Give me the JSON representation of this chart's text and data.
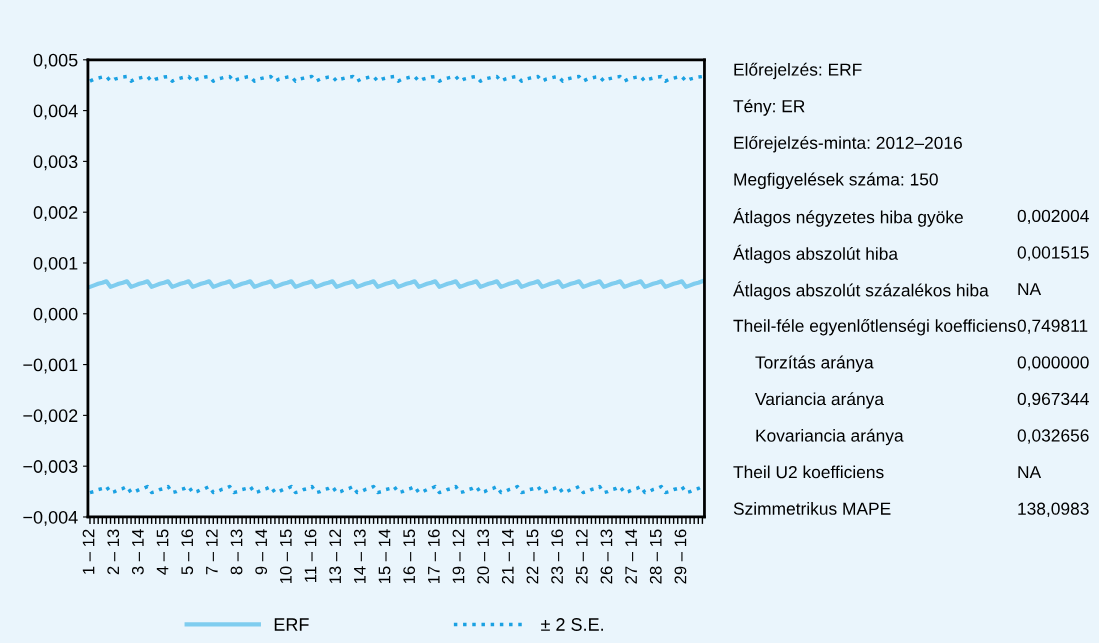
{
  "chart_data": {
    "type": "line",
    "categories": [
      "1 – 12",
      null,
      null,
      null,
      null,
      null,
      "2 – 13",
      null,
      null,
      null,
      null,
      null,
      "3 – 14",
      null,
      null,
      null,
      null,
      null,
      "4 – 15",
      null,
      null,
      null,
      null,
      null,
      "5 – 16",
      null,
      null,
      null,
      null,
      null,
      "7 – 12",
      null,
      null,
      null,
      null,
      null,
      "8 – 13",
      null,
      null,
      null,
      null,
      null,
      "9 – 14",
      null,
      null,
      null,
      null,
      null,
      "10 – 15",
      null,
      null,
      null,
      null,
      null,
      "11 – 16",
      null,
      null,
      null,
      null,
      null,
      "13 – 12",
      null,
      null,
      null,
      null,
      null,
      "14 – 13",
      null,
      null,
      null,
      null,
      null,
      "15 – 14",
      null,
      null,
      null,
      null,
      null,
      "16 – 15",
      null,
      null,
      null,
      null,
      null,
      "17 – 16",
      null,
      null,
      null,
      null,
      null,
      "19 – 12",
      null,
      null,
      null,
      null,
      null,
      "20 – 13",
      null,
      null,
      null,
      null,
      null,
      "21 – 14",
      null,
      null,
      null,
      null,
      null,
      "22 – 15",
      null,
      null,
      null,
      null,
      null,
      "23 – 16",
      null,
      null,
      null,
      null,
      null,
      "25 – 12",
      null,
      null,
      null,
      null,
      null,
      "26 – 13",
      null,
      null,
      null,
      null,
      null,
      "27 – 14",
      null,
      null,
      null,
      null,
      null,
      "28 – 15",
      null,
      null,
      null,
      null,
      null,
      "29 – 16",
      null,
      null,
      null,
      null,
      null
    ],
    "series": [
      {
        "name": "ERF",
        "color": "#7fcdef",
        "line_style": "solid",
        "values": [
          0.00053,
          0.00056,
          0.00059,
          0.00061,
          0.00064,
          0.00053,
          0.00056,
          0.00059,
          0.00061,
          0.00064,
          0.00053,
          0.00056,
          0.00059,
          0.00061,
          0.00064,
          0.00053,
          0.00056,
          0.00059,
          0.00061,
          0.00064,
          0.00053,
          0.00056,
          0.00059,
          0.00061,
          0.00064,
          0.00053,
          0.00056,
          0.00059,
          0.00061,
          0.00064,
          0.00053,
          0.00056,
          0.00059,
          0.00061,
          0.00064,
          0.00053,
          0.00056,
          0.00059,
          0.00061,
          0.00064,
          0.00053,
          0.00056,
          0.00059,
          0.00061,
          0.00064,
          0.00053,
          0.00056,
          0.00059,
          0.00061,
          0.00064,
          0.00053,
          0.00056,
          0.00059,
          0.00061,
          0.00064,
          0.00053,
          0.00056,
          0.00059,
          0.00061,
          0.00064,
          0.00053,
          0.00056,
          0.00059,
          0.00061,
          0.00064,
          0.00053,
          0.00056,
          0.00059,
          0.00061,
          0.00064,
          0.00053,
          0.00056,
          0.00059,
          0.00061,
          0.00064,
          0.00053,
          0.00056,
          0.00059,
          0.00061,
          0.00064,
          0.00053,
          0.00056,
          0.00059,
          0.00061,
          0.00064,
          0.00053,
          0.00056,
          0.00059,
          0.00061,
          0.00064,
          0.00053,
          0.00056,
          0.00059,
          0.00061,
          0.00064,
          0.00053,
          0.00056,
          0.00059,
          0.00061,
          0.00064,
          0.00053,
          0.00056,
          0.00059,
          0.00061,
          0.00064,
          0.00053,
          0.00056,
          0.00059,
          0.00061,
          0.00064,
          0.00053,
          0.00056,
          0.00059,
          0.00061,
          0.00064,
          0.00053,
          0.00056,
          0.00059,
          0.00061,
          0.00064,
          0.00053,
          0.00056,
          0.00059,
          0.00061,
          0.00064,
          0.00053,
          0.00056,
          0.00059,
          0.00061,
          0.00064,
          0.00053,
          0.00056,
          0.00059,
          0.00061,
          0.00064,
          0.00053,
          0.00056,
          0.00059,
          0.00061,
          0.00064,
          0.00053,
          0.00056,
          0.00059,
          0.00061,
          0.00064,
          0.00053,
          0.00056,
          0.00059,
          0.00061,
          0.00064
        ]
      },
      {
        "name": "± 2 S.E.",
        "color": "#1ba1e2",
        "line_style": "dotted",
        "values": [
          0.00458,
          0.00462,
          0.00464,
          0.00466,
          0.00467,
          0.00458,
          0.00462,
          0.00464,
          0.00466,
          0.00467,
          0.00458,
          0.00462,
          0.00464,
          0.00466,
          0.00467,
          0.00458,
          0.00462,
          0.00464,
          0.00466,
          0.00467,
          0.00458,
          0.00462,
          0.00464,
          0.00466,
          0.00467,
          0.00458,
          0.00462,
          0.00464,
          0.00466,
          0.00467,
          0.00458,
          0.00462,
          0.00464,
          0.00466,
          0.00467,
          0.00458,
          0.00462,
          0.00464,
          0.00466,
          0.00467,
          0.00458,
          0.00462,
          0.00464,
          0.00466,
          0.00467,
          0.00458,
          0.00462,
          0.00464,
          0.00466,
          0.00467,
          0.00458,
          0.00462,
          0.00464,
          0.00466,
          0.00467,
          0.00458,
          0.00462,
          0.00464,
          0.00466,
          0.00467,
          0.00458,
          0.00462,
          0.00464,
          0.00466,
          0.00467,
          0.00458,
          0.00462,
          0.00464,
          0.00466,
          0.00467,
          0.00458,
          0.00462,
          0.00464,
          0.00466,
          0.00467,
          0.00458,
          0.00462,
          0.00464,
          0.00466,
          0.00467,
          0.00458,
          0.00462,
          0.00464,
          0.00466,
          0.00467,
          0.00458,
          0.00462,
          0.00464,
          0.00466,
          0.00467,
          0.00458,
          0.00462,
          0.00464,
          0.00466,
          0.00467,
          0.00458,
          0.00462,
          0.00464,
          0.00466,
          0.00467,
          0.00458,
          0.00462,
          0.00464,
          0.00466,
          0.00467,
          0.00458,
          0.00462,
          0.00464,
          0.00466,
          0.00467,
          0.00458,
          0.00462,
          0.00464,
          0.00466,
          0.00467,
          0.00458,
          0.00462,
          0.00464,
          0.00466,
          0.00467,
          0.00458,
          0.00462,
          0.00464,
          0.00466,
          0.00467,
          0.00458,
          0.00462,
          0.00464,
          0.00466,
          0.00467,
          0.00458,
          0.00462,
          0.00464,
          0.00466,
          0.00467,
          0.00458,
          0.00462,
          0.00464,
          0.00466,
          0.00467,
          0.00458,
          0.00462,
          0.00464,
          0.00466,
          0.00467,
          0.00458,
          0.00462,
          0.00464,
          0.00466,
          0.00467
        ]
      },
      {
        "color": "#1ba1e2",
        "line_style": "dotted",
        "values": [
          -0.00352,
          -0.0035,
          -0.00346,
          -0.00344,
          -0.0034,
          -0.00352,
          -0.0035,
          -0.00346,
          -0.00344,
          -0.0034,
          -0.00352,
          -0.0035,
          -0.00346,
          -0.00344,
          -0.0034,
          -0.00352,
          -0.0035,
          -0.00346,
          -0.00344,
          -0.0034,
          -0.00352,
          -0.0035,
          -0.00346,
          -0.00344,
          -0.0034,
          -0.00352,
          -0.0035,
          -0.00346,
          -0.00344,
          -0.0034,
          -0.00352,
          -0.0035,
          -0.00346,
          -0.00344,
          -0.0034,
          -0.00352,
          -0.0035,
          -0.00346,
          -0.00344,
          -0.0034,
          -0.00352,
          -0.0035,
          -0.00346,
          -0.00344,
          -0.0034,
          -0.00352,
          -0.0035,
          -0.00346,
          -0.00344,
          -0.0034,
          -0.00352,
          -0.0035,
          -0.00346,
          -0.00344,
          -0.0034,
          -0.00352,
          -0.0035,
          -0.00346,
          -0.00344,
          -0.0034,
          -0.00352,
          -0.0035,
          -0.00346,
          -0.00344,
          -0.0034,
          -0.00352,
          -0.0035,
          -0.00346,
          -0.00344,
          -0.0034,
          -0.00352,
          -0.0035,
          -0.00346,
          -0.00344,
          -0.0034,
          -0.00352,
          -0.0035,
          -0.00346,
          -0.00344,
          -0.0034,
          -0.00352,
          -0.0035,
          -0.00346,
          -0.00344,
          -0.0034,
          -0.00352,
          -0.0035,
          -0.00346,
          -0.00344,
          -0.0034,
          -0.00352,
          -0.0035,
          -0.00346,
          -0.00344,
          -0.0034,
          -0.00352,
          -0.0035,
          -0.00346,
          -0.00344,
          -0.0034,
          -0.00352,
          -0.0035,
          -0.00346,
          -0.00344,
          -0.0034,
          -0.00352,
          -0.0035,
          -0.00346,
          -0.00344,
          -0.0034,
          -0.00352,
          -0.0035,
          -0.00346,
          -0.00344,
          -0.0034,
          -0.00352,
          -0.0035,
          -0.00346,
          -0.00344,
          -0.0034,
          -0.00352,
          -0.0035,
          -0.00346,
          -0.00344,
          -0.0034,
          -0.00352,
          -0.0035,
          -0.00346,
          -0.00344,
          -0.0034,
          -0.00352,
          -0.0035,
          -0.00346,
          -0.00344,
          -0.0034,
          -0.00352,
          -0.0035,
          -0.00346,
          -0.00344,
          -0.0034,
          -0.00352,
          -0.0035,
          -0.00346,
          -0.00344,
          -0.0034,
          -0.00352,
          -0.0035,
          -0.00346,
          -0.00344,
          -0.0034
        ]
      }
    ],
    "ylim": [
      -0.004,
      0.005
    ],
    "yticks": [
      {
        "value": -0.004,
        "label": "−0,004"
      },
      {
        "value": -0.003,
        "label": "−0,003"
      },
      {
        "value": -0.002,
        "label": "−0,002"
      },
      {
        "value": -0.001,
        "label": "−0,001"
      },
      {
        "value": 0,
        "label": "0,000"
      },
      {
        "value": 0.001,
        "label": "0,001"
      },
      {
        "value": 0.002,
        "label": "0,002"
      },
      {
        "value": 0.003,
        "label": "0,003"
      },
      {
        "value": 0.004,
        "label": "0,004"
      },
      {
        "value": 0.005,
        "label": "0,005"
      }
    ],
    "grid": false,
    "legend": "bottom",
    "annotations": [
      "Előrejelzés: ERF",
      "Tény: ER",
      "Előrejelzés-minta: 2012–2016",
      "Megfigyelések száma: 150",
      "Átlagos négyzetes hiba gyöke",
      "0,002004",
      "Átlagos abszolút hiba",
      "0,001515",
      "Átlagos abszolút százalékos hiba",
      "NA",
      "Theil-féle egyenlőtlenségi koefficiens",
      "0,749811",
      "Torzítás aránya",
      "0,000000",
      "Variancia aránya",
      "0,967344",
      "Kovariancia aránya",
      "0,032656",
      "Theil U2 koefficiens",
      "NA",
      "Szimmetrikus MAPE",
      "138,0983"
    ]
  }
}
